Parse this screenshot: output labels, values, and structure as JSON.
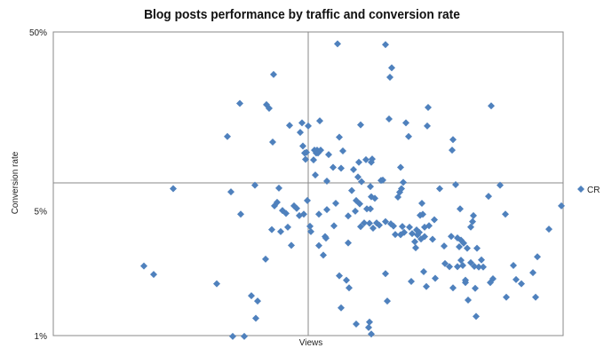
{
  "chart_data": {
    "type": "scatter",
    "title": "Blog posts performance by traffic and conversion rate",
    "xlabel": "Views",
    "ylabel": "Conversion rate",
    "y_scale": "log",
    "ylim": [
      1,
      50
    ],
    "y_ticks": [
      "1%",
      "5%",
      "50%"
    ],
    "y_tick_values": [
      1,
      5,
      50
    ],
    "x_ticks": [],
    "grid": true,
    "legend_position": "right",
    "marker": "diamond",
    "series": [
      {
        "name": "CR",
        "color": "#4f81bd",
        "points": [
          [
            162,
            2.45
          ],
          [
            173,
            2.2
          ],
          [
            195,
            6.64
          ],
          [
            244,
            1.95
          ],
          [
            256,
            13.0
          ],
          [
            260,
            6.37
          ],
          [
            262,
            0.99
          ],
          [
            270,
            19.9
          ],
          [
            271,
            4.78
          ],
          [
            275,
            0.99
          ],
          [
            283,
            1.67
          ],
          [
            287,
            6.94
          ],
          [
            288,
            1.25
          ],
          [
            290,
            1.56
          ],
          [
            299,
            2.68
          ],
          [
            300,
            19.6
          ],
          [
            303,
            18.7
          ],
          [
            306,
            3.92
          ],
          [
            307,
            12.1
          ],
          [
            308,
            28.9
          ],
          [
            309,
            5.32
          ],
          [
            312,
            5.57
          ],
          [
            314,
            6.69
          ],
          [
            316,
            3.82
          ],
          [
            318,
            5.01
          ],
          [
            322,
            4.83
          ],
          [
            324,
            4.04
          ],
          [
            326,
            15.0
          ],
          [
            328,
            3.2
          ],
          [
            331,
            5.32
          ],
          [
            334,
            5.15
          ],
          [
            337,
            4.69
          ],
          [
            338,
            13.7
          ],
          [
            340,
            15.5
          ],
          [
            341,
            11.5
          ],
          [
            342,
            4.78
          ],
          [
            343,
            10.5
          ],
          [
            344,
            9.69
          ],
          [
            345,
            10.6
          ],
          [
            346,
            5.7
          ],
          [
            347,
            14.9
          ],
          [
            349,
            4.09
          ],
          [
            350,
            3.82
          ],
          [
            353,
            9.61
          ],
          [
            354,
            10.9
          ],
          [
            355,
            7.92
          ],
          [
            356,
            10.5
          ],
          [
            357,
            10.9
          ],
          [
            358,
            10.5
          ],
          [
            359,
            3.19
          ],
          [
            359,
            4.78
          ],
          [
            360,
            15.9
          ],
          [
            361,
            10.9
          ],
          [
            364,
            2.82
          ],
          [
            366,
            3.58
          ],
          [
            367,
            3.51
          ],
          [
            368,
            5.07
          ],
          [
            368,
            7.32
          ],
          [
            370,
            10.3
          ],
          [
            375,
            8.74
          ],
          [
            376,
            4.11
          ],
          [
            378,
            5.5
          ],
          [
            380,
            42.9
          ],
          [
            382,
            12.9
          ],
          [
            382,
            2.16
          ],
          [
            384,
            1.43
          ],
          [
            384,
            8.64
          ],
          [
            386,
            10.8
          ],
          [
            390,
            2.04
          ],
          [
            392,
            3.3
          ],
          [
            392,
            4.67
          ],
          [
            393,
            1.85
          ],
          [
            396,
            6.48
          ],
          [
            398,
            8.49
          ],
          [
            400,
            4.97
          ],
          [
            401,
            5.7
          ],
          [
            401,
            1.16
          ],
          [
            403,
            7.71
          ],
          [
            404,
            9.33
          ],
          [
            405,
            5.46
          ],
          [
            406,
            15.1
          ],
          [
            406,
            4.07
          ],
          [
            407,
            7.27
          ],
          [
            410,
            4.27
          ],
          [
            412,
            9.64
          ],
          [
            413,
            5.12
          ],
          [
            415,
            1.11
          ],
          [
            416,
            4.25
          ],
          [
            416,
            1.19
          ],
          [
            417,
            5.12
          ],
          [
            417,
            6.82
          ],
          [
            418,
            9.33
          ],
          [
            418,
            1.02
          ],
          [
            418,
            5.98
          ],
          [
            419,
            9.72
          ],
          [
            420,
            3.99
          ],
          [
            422,
            5.86
          ],
          [
            424,
            4.27
          ],
          [
            427,
            4.15
          ],
          [
            429,
            7.38
          ],
          [
            431,
            7.41
          ],
          [
            434,
            2.22
          ],
          [
            434,
            42.5
          ],
          [
            434,
            4.34
          ],
          [
            436,
            1.56
          ],
          [
            438,
            16.3
          ],
          [
            439,
            27.9
          ],
          [
            440,
            4.22
          ],
          [
            441,
            31.5
          ],
          [
            443,
            4.1
          ],
          [
            445,
            3.68
          ],
          [
            448,
            5.96
          ],
          [
            450,
            6.34
          ],
          [
            451,
            3.67
          ],
          [
            451,
            8.74
          ],
          [
            452,
            6.64
          ],
          [
            453,
            4.08
          ],
          [
            454,
            7.2
          ],
          [
            455,
            3.78
          ],
          [
            457,
            15.5
          ],
          [
            460,
            13.0
          ],
          [
            461,
            4.04
          ],
          [
            463,
            2.01
          ],
          [
            464,
            3.72
          ],
          [
            467,
            3.35
          ],
          [
            468,
            3.1
          ],
          [
            469,
            3.9
          ],
          [
            470,
            3.66
          ],
          [
            472,
            3.78
          ],
          [
            473,
            4.71
          ],
          [
            474,
            3.47
          ],
          [
            475,
            5.5
          ],
          [
            476,
            4.77
          ],
          [
            477,
            2.28
          ],
          [
            478,
            4.04
          ],
          [
            478,
            3.58
          ],
          [
            480,
            1.88
          ],
          [
            481,
            14.9
          ],
          [
            482,
            18.9
          ],
          [
            483,
            4.12
          ],
          [
            487,
            3.46
          ],
          [
            489,
            4.45
          ],
          [
            490,
            2.09
          ],
          [
            495,
            6.64
          ],
          [
            500,
            3.17
          ],
          [
            501,
            2.53
          ],
          [
            506,
            2.43
          ],
          [
            508,
            3.59
          ],
          [
            509,
            10.9
          ],
          [
            510,
            1.85
          ],
          [
            510,
            12.5
          ],
          [
            513,
            6.99
          ],
          [
            515,
            3.52
          ],
          [
            515,
            2.43
          ],
          [
            517,
            3.14
          ],
          [
            518,
            5.12
          ],
          [
            519,
            3.42
          ],
          [
            519,
            2.64
          ],
          [
            521,
            2.47
          ],
          [
            522,
            3.29
          ],
          [
            524,
            1.98
          ],
          [
            524,
            2.04
          ],
          [
            526,
            3.08
          ],
          [
            527,
            1.58
          ],
          [
            530,
            4.05
          ],
          [
            530,
            2.56
          ],
          [
            532,
            4.34
          ],
          [
            533,
            4.69
          ],
          [
            534,
            2.44
          ],
          [
            535,
            1.84
          ],
          [
            536,
            1.28
          ],
          [
            537,
            3.08
          ],
          [
            539,
            2.42
          ],
          [
            542,
            2.65
          ],
          [
            544,
            2.42
          ],
          [
            550,
            6.02
          ],
          [
            552,
            1.98
          ],
          [
            553,
            19.3
          ],
          [
            555,
            2.08
          ],
          [
            563,
            6.94
          ],
          [
            569,
            4.78
          ],
          [
            570,
            1.64
          ],
          [
            578,
            2.47
          ],
          [
            581,
            2.06
          ],
          [
            587,
            1.95
          ],
          [
            600,
            2.25
          ],
          [
            603,
            1.64
          ],
          [
            605,
            2.76
          ],
          [
            618,
            3.94
          ],
          [
            632,
            5.32
          ]
        ]
      }
    ]
  }
}
